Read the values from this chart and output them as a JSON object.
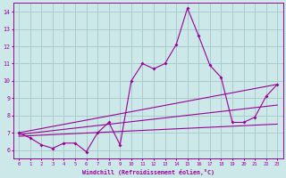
{
  "xlabel": "Windchill (Refroidissement éolien,°C)",
  "background_color": "#cce8e8",
  "grid_color": "#aacccc",
  "line_color": "#990099",
  "xlim": [
    -0.5,
    23.5
  ],
  "ylim": [
    5.5,
    14.5
  ],
  "xticks": [
    0,
    1,
    2,
    3,
    4,
    5,
    6,
    7,
    8,
    9,
    10,
    11,
    12,
    13,
    14,
    15,
    16,
    17,
    18,
    19,
    20,
    21,
    22,
    23
  ],
  "yticks": [
    6,
    7,
    8,
    9,
    10,
    11,
    12,
    13,
    14
  ],
  "curve1_x": [
    0,
    1,
    2,
    3,
    4,
    5,
    6,
    7,
    8,
    9,
    10,
    11,
    12,
    13,
    14,
    15,
    16,
    17,
    18,
    19,
    20,
    21,
    22,
    23
  ],
  "curve1_y": [
    7.0,
    6.7,
    6.3,
    6.1,
    6.4,
    6.4,
    5.9,
    7.0,
    7.6,
    6.3,
    10.0,
    11.0,
    10.7,
    11.0,
    12.1,
    14.2,
    12.6,
    10.9,
    10.2,
    7.6,
    7.6,
    7.9,
    9.1,
    9.8
  ],
  "curve2_x": [
    0,
    23
  ],
  "curve2_y": [
    7.0,
    9.8
  ],
  "curve3_x": [
    0,
    23
  ],
  "curve3_y": [
    6.9,
    8.6
  ],
  "curve4_x": [
    0,
    23
  ],
  "curve4_y": [
    6.8,
    7.5
  ]
}
